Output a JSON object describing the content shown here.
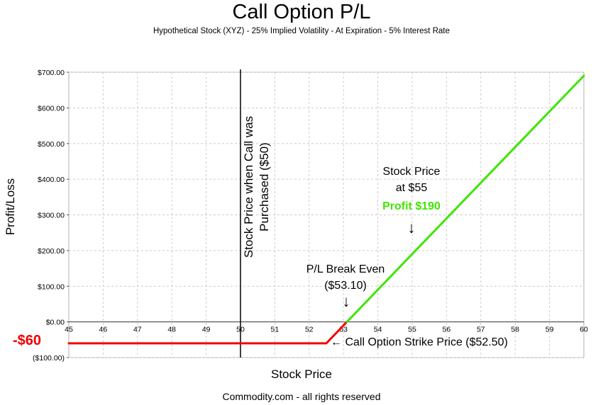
{
  "chart": {
    "title": "Call Option P/L",
    "subtitle": "Hypothetical Stock (XYZ) - 25% Implied Volatility - At Expiration - 5% Interest Rate",
    "xlabel": "Stock Price",
    "ylabel": "Profit/Loss",
    "footer": "Commodity.com - all rights reserved"
  },
  "annotations": {
    "purchase": "Stock Price when Call was Purchased ($50)",
    "breakeven_title": "P/L Break Even",
    "breakeven_value": "($53.10)",
    "arrow_down": "↓",
    "arrow_left": "←",
    "s55_line1": "Stock Price",
    "s55_line2": "at $55",
    "s55_profit": "Profit $190",
    "strike": "Call Option Strike Price ($52.50)",
    "loss": "-$60"
  },
  "chart_data": {
    "type": "line",
    "xlabel": "Stock Price",
    "ylabel": "Profit/Loss",
    "xlim": [
      45,
      60
    ],
    "ylim": [
      -100,
      700
    ],
    "xticks": [
      45,
      46,
      47,
      48,
      49,
      50,
      51,
      52,
      53,
      54,
      55,
      56,
      57,
      58,
      59,
      60
    ],
    "yticks": [
      -100,
      0,
      100,
      200,
      300,
      400,
      500,
      600,
      700
    ],
    "ytick_labels": [
      "($100.00)",
      "$0.00",
      "$100.00",
      "$200.00",
      "$300.00",
      "$400.00",
      "$500.00",
      "$600.00",
      "$700.00"
    ],
    "grid": true,
    "vertical_line_x": 50,
    "series": [
      {
        "segment": "loss",
        "color": "#f20000",
        "x": [
          45,
          52.5,
          53.1
        ],
        "y": [
          -60,
          -60,
          0
        ]
      },
      {
        "segment": "profit",
        "color": "#3ee600",
        "x": [
          53.1,
          60
        ],
        "y": [
          0,
          690
        ]
      }
    ]
  }
}
